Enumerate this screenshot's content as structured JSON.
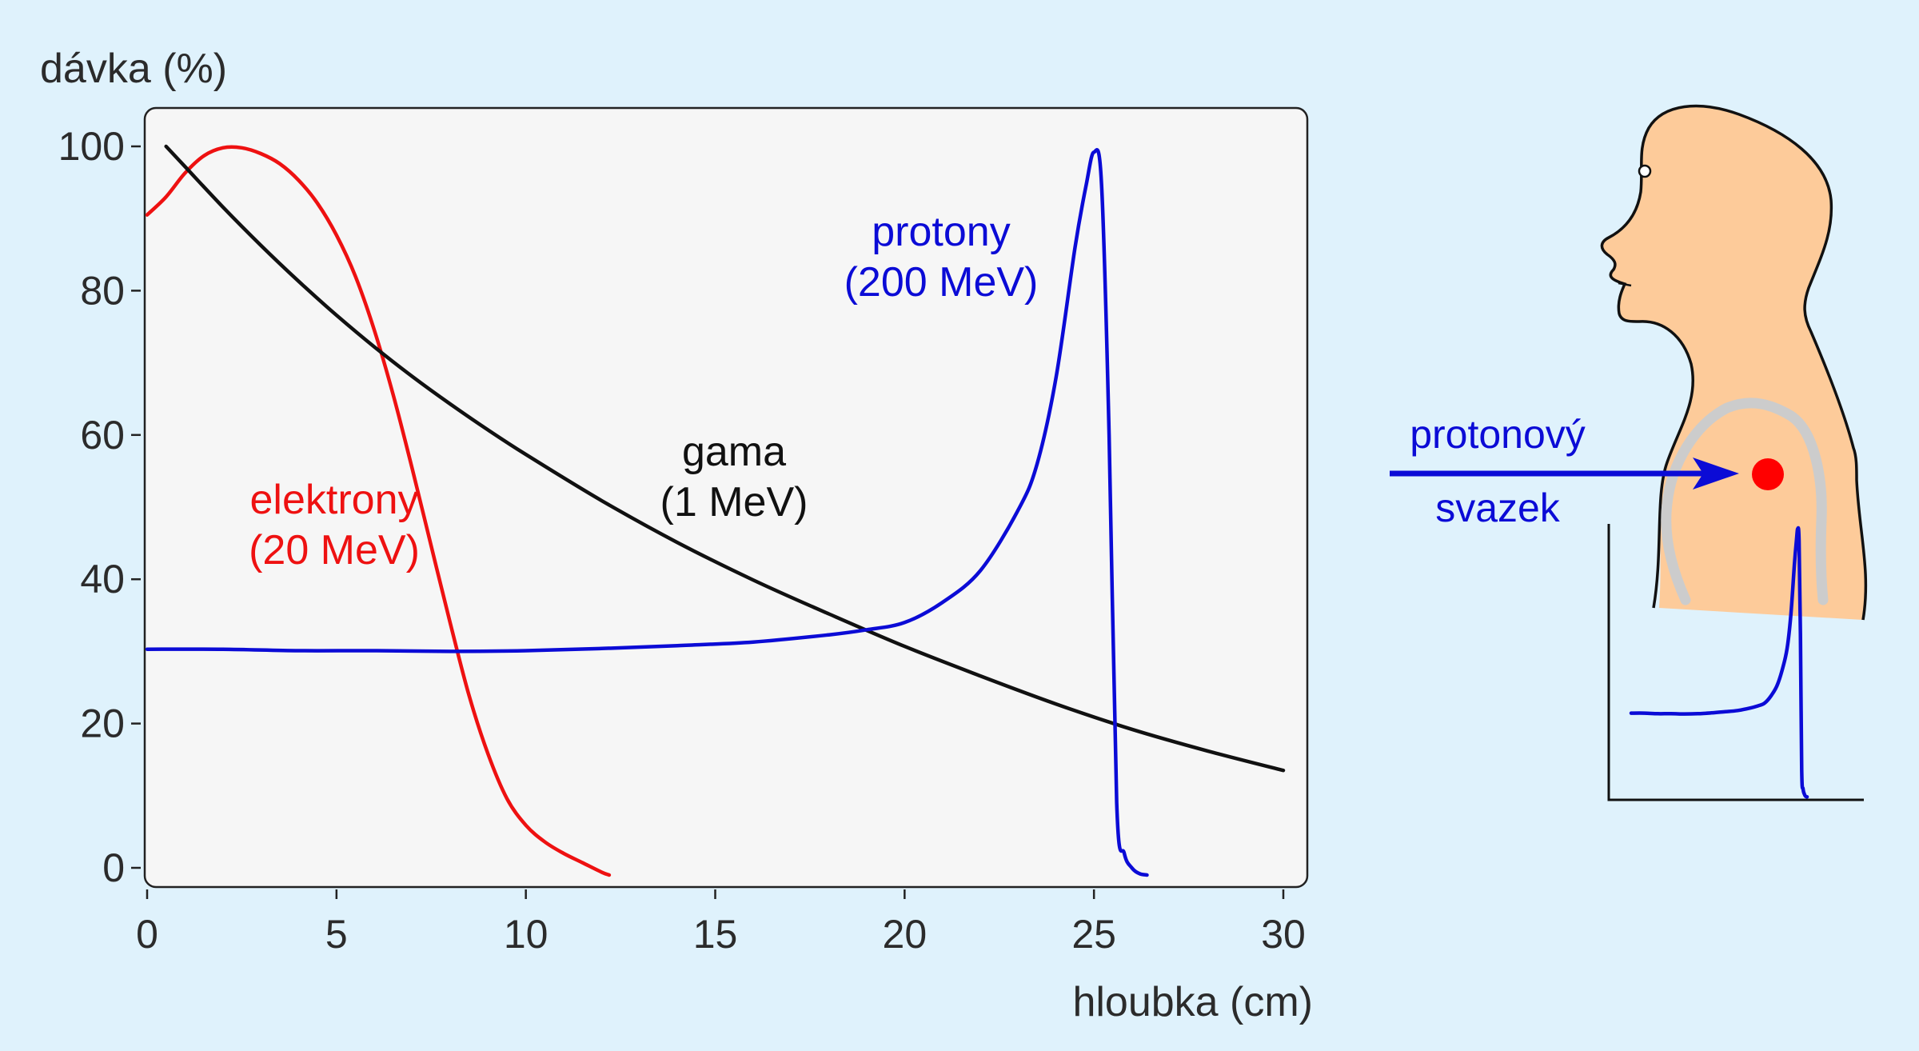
{
  "colors": {
    "background": "#dff2fc",
    "plot_area": "#f6f6f6",
    "electrons": "#ee1111",
    "gamma": "#111111",
    "protons": "#0b0bd6",
    "body_fill": "#fdcb9a",
    "skeleton": "#cccccc",
    "tumor": "#ff0000"
  },
  "chart_data": {
    "type": "line",
    "title": "",
    "xlabel": "hloubka (cm)",
    "ylabel": "dávka (%)",
    "xlim": [
      0,
      30
    ],
    "ylim": [
      0,
      100
    ],
    "x_ticks": [
      "0",
      "5",
      "10",
      "15",
      "20",
      "25",
      "30"
    ],
    "y_ticks": [
      "0",
      "20",
      "40",
      "60",
      "80",
      "100"
    ],
    "grid": false,
    "series": [
      {
        "name": "elektrony",
        "label_lines": [
          "elektrony",
          "(20 MeV)"
        ],
        "color": "#ee1111",
        "x": [
          0,
          0.5,
          1,
          1.5,
          2,
          2.5,
          3,
          3.5,
          4,
          4.5,
          5,
          5.5,
          6,
          6.5,
          7,
          7.5,
          8,
          8.5,
          9,
          9.5,
          10,
          10.5,
          11,
          11.5,
          12,
          12.2
        ],
        "y": [
          90.5,
          93,
          96.3,
          98.7,
          99.8,
          99.8,
          99,
          97.6,
          95.3,
          92.1,
          87.7,
          82,
          74.5,
          65.5,
          55.3,
          44.6,
          34,
          23.9,
          15.8,
          9.6,
          5.9,
          3.6,
          2,
          0.7,
          -0.6,
          -1
        ]
      },
      {
        "name": "gama",
        "label_lines": [
          "gama",
          "(1 MeV)"
        ],
        "color": "#111111",
        "x": [
          0.5,
          1,
          2,
          3,
          4,
          5,
          6,
          7,
          8,
          9,
          10,
          12,
          14,
          16,
          18,
          20,
          22,
          24,
          26,
          28,
          30
        ],
        "y": [
          100,
          97.2,
          91.6,
          86.3,
          81.3,
          76.6,
          72.2,
          68.1,
          64.3,
          60.7,
          57.3,
          50.9,
          45.1,
          39.9,
          35.2,
          30.7,
          26.6,
          22.7,
          19.2,
          16.2,
          13.5
        ]
      },
      {
        "name": "protony",
        "label_lines": [
          "protony",
          "(200 MeV)"
        ],
        "color": "#0b0bd6",
        "x": [
          0,
          2,
          4,
          6,
          8,
          10,
          12,
          14,
          16,
          18,
          19,
          20,
          21,
          22,
          23,
          23.5,
          24,
          24.5,
          24.8,
          25,
          25.2,
          25.4,
          25.6,
          25.8,
          26,
          26.2,
          26.4
        ],
        "y": [
          30.3,
          30.3,
          30.1,
          30.1,
          30,
          30.1,
          30.4,
          30.8,
          31.3,
          32.3,
          33,
          34,
          36.8,
          41.2,
          49.6,
          56,
          68,
          86,
          94.8,
          99.2,
          94.8,
          60,
          9,
          2,
          0,
          -0.8,
          -1
        ]
      }
    ]
  },
  "illustration": {
    "beam_label_lines": [
      "protonový",
      "svazek"
    ]
  }
}
